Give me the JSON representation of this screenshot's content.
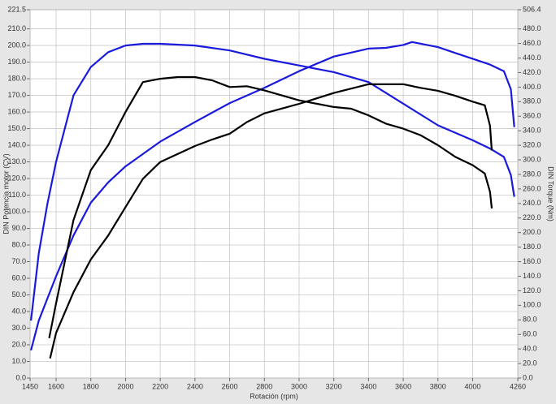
{
  "chart_data": {
    "type": "line",
    "xlabel": "Rotación (rpm)",
    "ylabel": "DIN Potencia motor (CV)",
    "y2label": "DIN Torque (Nm)",
    "xlim": [
      1450,
      4260
    ],
    "xticks": [
      1450,
      1600,
      1800,
      2000,
      2200,
      2400,
      2600,
      2800,
      3000,
      3200,
      3400,
      3600,
      3800,
      4000,
      4260
    ],
    "ylim": [
      0,
      221.5
    ],
    "yticks": [
      {
        "value": 0,
        "label": "0.0"
      },
      {
        "value": 10,
        "label": "10.0"
      },
      {
        "value": 20,
        "label": "20.0"
      },
      {
        "value": 30,
        "label": "30.0"
      },
      {
        "value": 40,
        "label": "40.0"
      },
      {
        "value": 50,
        "label": "50.0"
      },
      {
        "value": 60,
        "label": "60.0"
      },
      {
        "value": 70,
        "label": "70.0"
      },
      {
        "value": 80,
        "label": "80.0"
      },
      {
        "value": 90,
        "label": "90.0"
      },
      {
        "value": 100,
        "label": "100.0"
      },
      {
        "value": 110,
        "label": "110.0"
      },
      {
        "value": 120,
        "label": "120.0"
      },
      {
        "value": 130,
        "label": "130.0"
      },
      {
        "value": 140,
        "label": "140.0"
      },
      {
        "value": 150,
        "label": "150.0"
      },
      {
        "value": 160,
        "label": "160.0"
      },
      {
        "value": 170,
        "label": "170.0"
      },
      {
        "value": 180,
        "label": "180.0"
      },
      {
        "value": 190,
        "label": "190.0"
      },
      {
        "value": 200,
        "label": "200.0"
      },
      {
        "value": 210,
        "label": "210.0"
      },
      221.5
    ],
    "y2lim": [
      0,
      506.4
    ],
    "y2ticks": [
      {
        "value": 0,
        "label": "0.0"
      },
      {
        "value": 20,
        "label": "20.0"
      },
      {
        "value": 40,
        "label": "40.0"
      },
      {
        "value": 60,
        "label": "60.0"
      },
      {
        "value": 80,
        "label": "80.0"
      },
      {
        "value": 100,
        "label": "100.0"
      },
      {
        "value": 120,
        "label": "120.0"
      },
      {
        "value": 140,
        "label": "140.0"
      },
      {
        "value": 160,
        "label": "160.0"
      },
      {
        "value": 180,
        "label": "180.0"
      },
      {
        "value": 200,
        "label": "200.0"
      },
      {
        "value": 220,
        "label": "220.0"
      },
      {
        "value": 240,
        "label": "240.0"
      },
      {
        "value": 260,
        "label": "260.0"
      },
      {
        "value": 280,
        "label": "280.0"
      },
      {
        "value": 300,
        "label": "300.0"
      },
      {
        "value": 320,
        "label": "320.0"
      },
      {
        "value": 340,
        "label": "340.0"
      },
      {
        "value": 360,
        "label": "360.0"
      },
      {
        "value": 380,
        "label": "380.0"
      },
      {
        "value": 400,
        "label": "400.0"
      },
      {
        "value": 420,
        "label": "420.0"
      },
      {
        "value": 440,
        "label": "440.0"
      },
      {
        "value": 460,
        "label": "460.0"
      },
      {
        "value": 480,
        "label": "480.0"
      },
      506.4
    ],
    "grid": true,
    "series": [
      {
        "color": "#1a1adc",
        "axis": "y",
        "x": [
          1455,
          1500,
          1550,
          1600,
          1700,
          1800,
          1900,
          2000,
          2100,
          2200,
          2400,
          2600,
          2800,
          3000,
          3200,
          3400,
          3600,
          3800,
          4000,
          4100,
          4180,
          4220,
          4240
        ],
        "values": [
          34.5,
          75,
          105,
          130,
          170,
          187,
          196,
          200,
          201,
          201,
          200,
          197,
          192,
          188,
          184,
          178,
          165,
          152,
          143,
          138,
          133,
          122,
          109
        ]
      },
      {
        "color": "#1a1adc",
        "axis": "y2",
        "x": [
          1455,
          1500,
          1600,
          1700,
          1800,
          1900,
          2000,
          2200,
          2400,
          2600,
          2800,
          3000,
          3200,
          3400,
          3500,
          3600,
          3650,
          3800,
          3900,
          4000,
          4100,
          4180,
          4220,
          4240
        ],
        "values": [
          38,
          79,
          140,
          196,
          241,
          269,
          291,
          325,
          352,
          378,
          399,
          422,
          442,
          453,
          454,
          458,
          462,
          455,
          447,
          439,
          431,
          422,
          397,
          345
        ]
      },
      {
        "color": "#000000",
        "axis": "y",
        "x": [
          1560,
          1600,
          1700,
          1800,
          1900,
          2000,
          2100,
          2200,
          2300,
          2400,
          2500,
          2600,
          2700,
          2800,
          2900,
          3000,
          3200,
          3300,
          3400,
          3500,
          3600,
          3700,
          3800,
          3900,
          4000,
          4070,
          4100,
          4110
        ],
        "values": [
          24,
          45,
          95,
          125,
          140,
          160,
          178,
          180,
          181,
          181,
          179,
          175,
          175.5,
          173,
          170,
          167,
          163,
          162,
          158,
          153,
          150,
          146,
          140,
          133,
          128,
          123,
          112,
          102
        ]
      },
      {
        "color": "#000000",
        "axis": "y2",
        "x": [
          1565,
          1600,
          1700,
          1800,
          1900,
          2000,
          2100,
          2200,
          2400,
          2500,
          2600,
          2700,
          2800,
          3000,
          3200,
          3400,
          3600,
          3700,
          3800,
          3900,
          4000,
          4070,
          4100,
          4110
        ],
        "values": [
          27,
          62,
          118,
          163,
          196,
          235,
          274,
          297,
          319,
          328,
          336,
          352,
          364,
          377,
          392,
          404,
          404,
          399,
          395,
          388,
          380,
          375,
          347,
          313
        ]
      }
    ]
  }
}
